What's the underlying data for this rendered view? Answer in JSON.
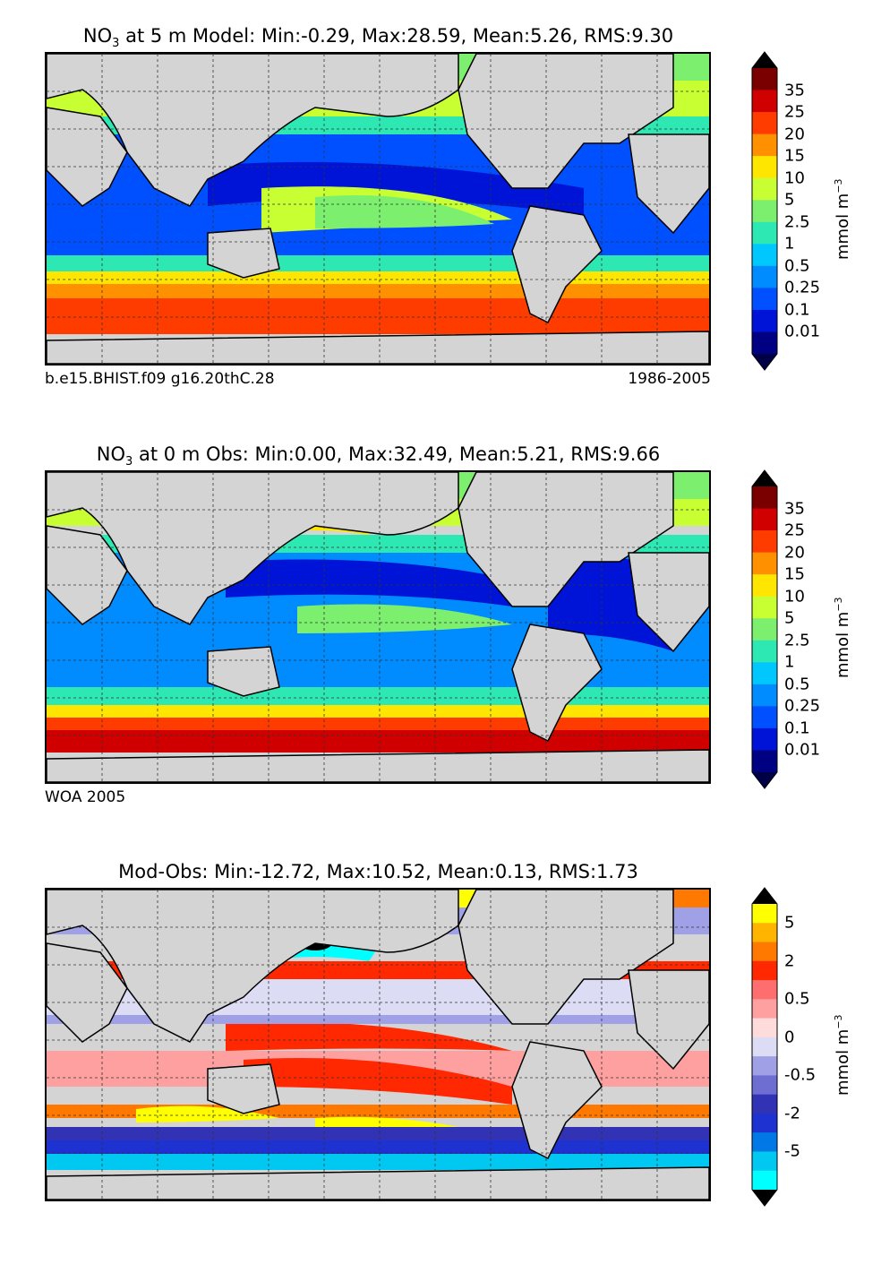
{
  "panels": [
    {
      "title_prefix": "NO",
      "title_sub": "3",
      "title_rest": " at 5 m Model: Min:-0.29, Max:28.59, Mean:5.26, RMS:9.30",
      "footer_left": "b.e15.BHIST.f09 g16.20thC.28",
      "footer_right": "1986-2005",
      "colorbar": {
        "unit_main": "mmol m",
        "unit_sup": "−3",
        "ticks": [
          "35",
          "25",
          "20",
          "15",
          "10",
          "5",
          "2.5",
          "1",
          "0.5",
          "0.25",
          "0.1",
          "0.01"
        ],
        "colors": [
          "#7a0000",
          "#d00000",
          "#ff3c00",
          "#ff9000",
          "#ffe600",
          "#c8ff32",
          "#7cf06e",
          "#2ee8b4",
          "#00c8ff",
          "#008cff",
          "#0050ff",
          "#0014d8",
          "#000082"
        ],
        "over_color": "#000000",
        "under_color": "#000046"
      }
    },
    {
      "title_prefix": "NO",
      "title_sub": "3",
      "title_rest": " at 0 m Obs: Min:0.00, Max:32.49, Mean:5.21, RMS:9.66",
      "footer_left": "WOA 2005",
      "footer_right": "",
      "colorbar": {
        "unit_main": "mmol m",
        "unit_sup": "−3",
        "ticks": [
          "35",
          "25",
          "20",
          "15",
          "10",
          "5",
          "2.5",
          "1",
          "0.5",
          "0.25",
          "0.1",
          "0.01"
        ],
        "colors": [
          "#7a0000",
          "#d00000",
          "#ff3c00",
          "#ff9000",
          "#ffe600",
          "#c8ff32",
          "#7cf06e",
          "#2ee8b4",
          "#00c8ff",
          "#008cff",
          "#0050ff",
          "#0014d8",
          "#000082"
        ],
        "over_color": "#000000",
        "under_color": "#000046"
      }
    },
    {
      "title_prefix": "",
      "title_sub": "",
      "title_rest": "Mod-Obs: Min:-12.72, Max:10.52, Mean:0.13, RMS:1.73",
      "footer_left": "",
      "footer_right": "",
      "colorbar": {
        "unit_main": "mmol m",
        "unit_sup": "−3",
        "ticks": [
          "5",
          "2",
          "0.5",
          "0",
          "-0.5",
          "-2",
          "-5"
        ],
        "colors": [
          "#ffff00",
          "#ffb400",
          "#ff7800",
          "#ff2800",
          "#ff6e6e",
          "#ffa0a0",
          "#ffdcdc",
          "#dcdcf5",
          "#a0a0e6",
          "#6e6ed2",
          "#3232b4",
          "#1e32d2",
          "#0078e6",
          "#00c8f0",
          "#00ffff"
        ],
        "over_color": "#000000",
        "under_color": "#000000"
      }
    }
  ]
}
